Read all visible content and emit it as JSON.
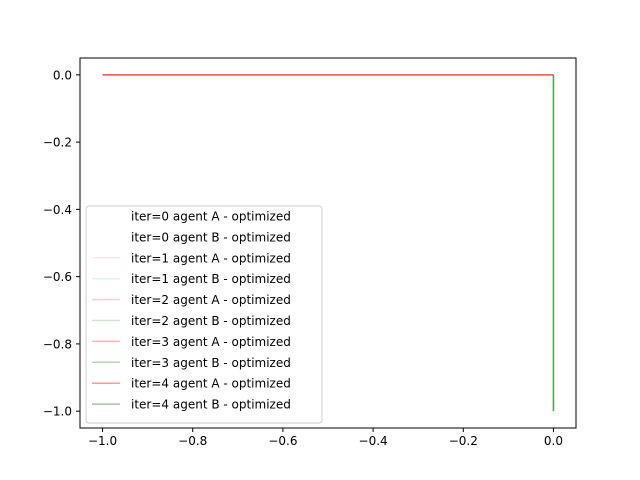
{
  "chart_data": {
    "type": "line",
    "title": "",
    "xlabel": "",
    "ylabel": "",
    "xlim": [
      -1.05,
      0.05
    ],
    "ylim": [
      -1.05,
      0.05
    ],
    "xticks": [
      -1.0,
      -0.8,
      -0.6,
      -0.4,
      -0.2,
      0.0
    ],
    "yticks": [
      0.0,
      -0.2,
      -0.4,
      -0.6,
      -0.8,
      -1.0
    ],
    "xtick_labels": [
      "−1.0",
      "−0.8",
      "−0.6",
      "−0.4",
      "−0.2",
      "0.0"
    ],
    "ytick_labels": [
      "0.0",
      "−0.2",
      "−0.4",
      "−0.6",
      "−0.8",
      "−1.0"
    ],
    "grid": false,
    "legend_position": "lower-left",
    "series": [
      {
        "name": "iter=0 agent A - optimized",
        "color": "#ff0000",
        "opacity": 0.0,
        "x": [
          -1.0,
          0.0
        ],
        "y": [
          0.0,
          0.0
        ]
      },
      {
        "name": "iter=0 agent B - optimized",
        "color": "#008000",
        "opacity": 0.0,
        "x": [
          0.0,
          0.0
        ],
        "y": [
          0.0,
          -1.0
        ]
      },
      {
        "name": "iter=1 agent A - optimized",
        "color": "#ff0000",
        "opacity": 0.1,
        "x": [
          -1.0,
          0.0
        ],
        "y": [
          0.0,
          0.0
        ]
      },
      {
        "name": "iter=1 agent B - optimized",
        "color": "#008000",
        "opacity": 0.1,
        "x": [
          0.0,
          0.0
        ],
        "y": [
          0.0,
          -1.0
        ]
      },
      {
        "name": "iter=2 agent A - optimized",
        "color": "#ff0000",
        "opacity": 0.2,
        "x": [
          -1.0,
          0.0
        ],
        "y": [
          0.0,
          0.0
        ]
      },
      {
        "name": "iter=2 agent B - optimized",
        "color": "#008000",
        "opacity": 0.2,
        "x": [
          0.0,
          0.0
        ],
        "y": [
          0.0,
          -1.0
        ]
      },
      {
        "name": "iter=3 agent A - optimized",
        "color": "#ff0000",
        "opacity": 0.3,
        "x": [
          -1.0,
          0.0
        ],
        "y": [
          0.0,
          0.0
        ]
      },
      {
        "name": "iter=3 agent B - optimized",
        "color": "#008000",
        "opacity": 0.3,
        "x": [
          0.0,
          0.0
        ],
        "y": [
          0.0,
          -1.0
        ]
      },
      {
        "name": "iter=4 agent A - optimized",
        "color": "#ff0000",
        "opacity": 0.4,
        "x": [
          -1.0,
          0.0
        ],
        "y": [
          0.0,
          0.0
        ]
      },
      {
        "name": "iter=4 agent B - optimized",
        "color": "#008000",
        "opacity": 0.4,
        "x": [
          0.0,
          0.0
        ],
        "y": [
          0.0,
          -1.0
        ]
      }
    ]
  }
}
